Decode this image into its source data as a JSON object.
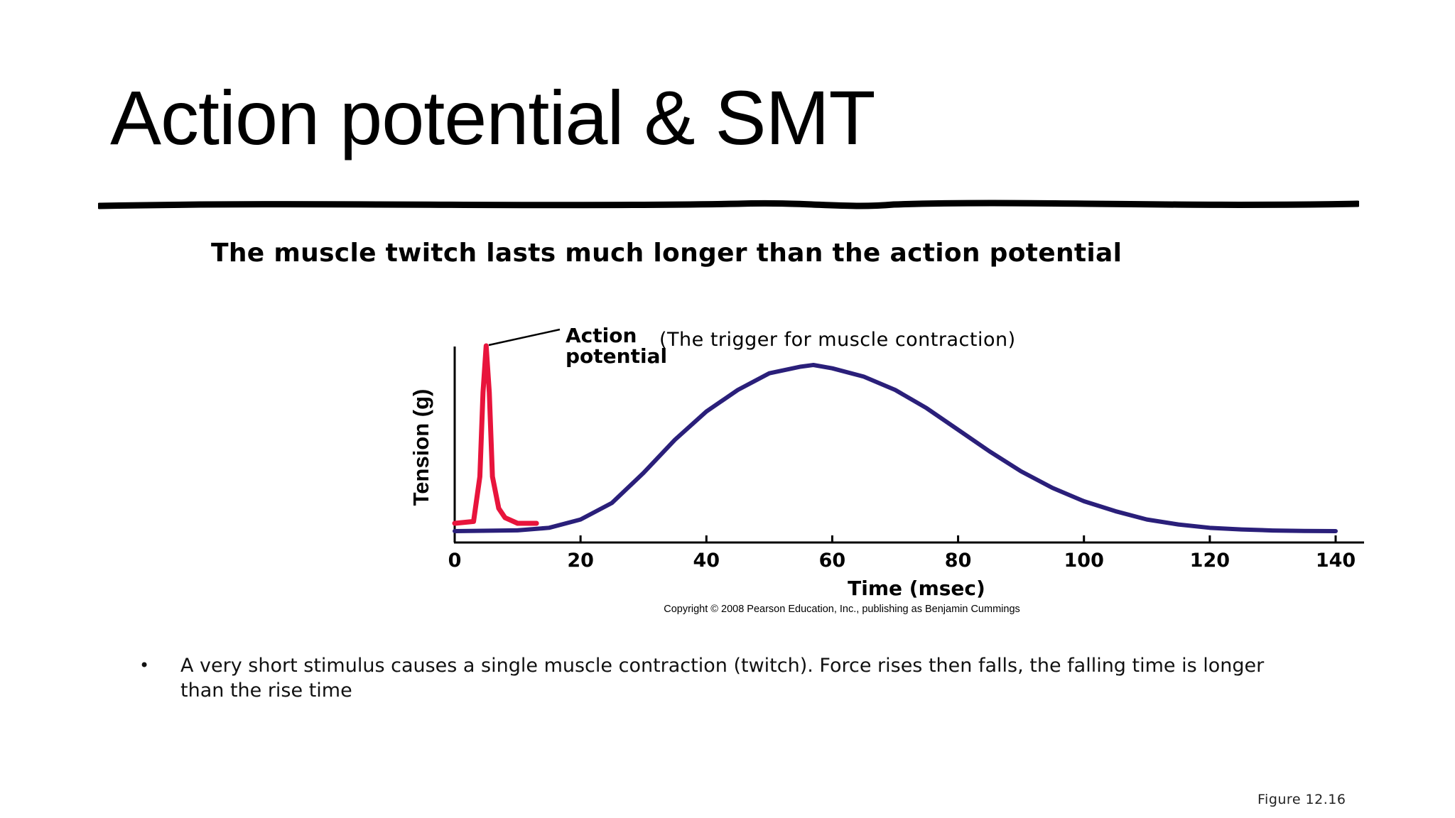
{
  "slide": {
    "title": "Action potential & SMT",
    "bullet_symbol": "•",
    "bullet_text": "A very short stimulus causes a single muscle contraction (twitch). Force rises then falls, the falling time is longer than the rise time",
    "figure_label": "Figure 12.16"
  },
  "chart_data": {
    "type": "line",
    "title": "The muscle twitch lasts much longer than the action potential",
    "xlabel": "Time (msec)",
    "ylabel": "Tension (g)",
    "xlim": [
      0,
      140
    ],
    "ylim": [
      0,
      1
    ],
    "x_ticks": [
      0,
      20,
      40,
      60,
      80,
      100,
      120,
      140
    ],
    "grid": false,
    "copyright": "Copyright © 2008 Pearson Education, Inc., publishing as Benjamin Cummings",
    "series": [
      {
        "name": "Action potential",
        "color": "#e8143c",
        "x": [
          0,
          3,
          4,
          4.5,
          5,
          5.5,
          6,
          7,
          8,
          10,
          13
        ],
        "y": [
          0.05,
          0.06,
          0.3,
          0.75,
          1.0,
          0.75,
          0.3,
          0.13,
          0.08,
          0.05,
          0.05
        ]
      },
      {
        "name": "Muscle twitch",
        "color": "#2a1f7a",
        "x": [
          0,
          10,
          15,
          20,
          25,
          30,
          35,
          40,
          45,
          50,
          55,
          57,
          60,
          65,
          70,
          75,
          80,
          85,
          90,
          95,
          100,
          105,
          110,
          115,
          120,
          125,
          130,
          135,
          140
        ],
        "y": [
          0.0,
          0.005,
          0.02,
          0.07,
          0.17,
          0.35,
          0.55,
          0.72,
          0.85,
          0.95,
          0.99,
          1.0,
          0.98,
          0.93,
          0.85,
          0.74,
          0.61,
          0.48,
          0.36,
          0.26,
          0.18,
          0.12,
          0.07,
          0.04,
          0.02,
          0.01,
          0.004,
          0.001,
          0.0
        ]
      }
    ],
    "annotations": [
      {
        "label_line1": "Action",
        "label_line2": "potential",
        "note": "(The trigger for muscle contraction)"
      }
    ]
  }
}
